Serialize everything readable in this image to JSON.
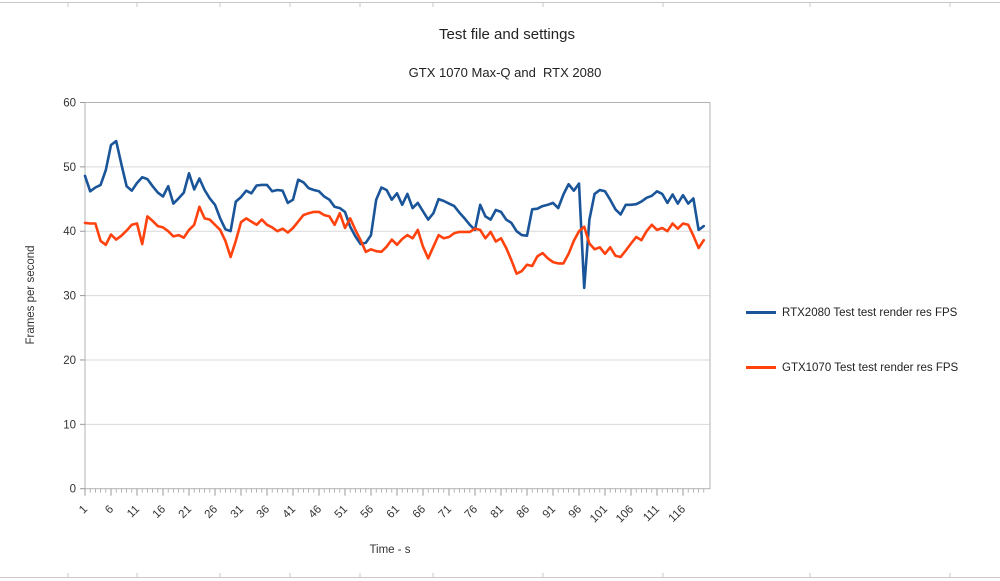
{
  "titles": {
    "main": "Test file and settings",
    "subtitle": "GTX 1070 Max-Q and  RTX 2080",
    "y_axis": "Frames per second",
    "x_axis": "Time - s"
  },
  "legend": {
    "position": "right",
    "items": [
      {
        "label": "RTX2080 Test test render res FPS",
        "color": "#1A5599"
      },
      {
        "label": "GTX1070 Test test render res FPS",
        "color": "#FF420E"
      }
    ]
  },
  "axes": {
    "y": {
      "min": 0,
      "max": 60,
      "tick_interval": 10,
      "tick_labels": [
        0,
        10,
        20,
        30,
        40,
        50,
        60
      ]
    },
    "x": {
      "start": 1,
      "step": 1,
      "count": 120,
      "minor_tick_every": 1,
      "label_every": 5,
      "tick_labels": [
        1,
        6,
        11,
        16,
        21,
        26,
        31,
        36,
        41,
        46,
        51,
        56,
        61,
        66,
        71,
        76,
        81,
        86,
        91,
        96,
        101,
        106,
        111,
        116
      ]
    }
  },
  "chart_data": {
    "type": "line",
    "title": "Test file and settings",
    "subtitle": "GTX 1070 Max-Q and  RTX 2080",
    "xlabel": "Time - s",
    "ylabel": "Frames per second",
    "ylim": [
      0,
      60
    ],
    "xlim": [
      1,
      120
    ],
    "grid": "horizontal",
    "legend_position": "right",
    "x_start": 1,
    "x_step": 1,
    "series": [
      {
        "name": "RTX2080 Test test render res FPS",
        "color": "#1A5599",
        "values": [
          48.6,
          46.2,
          46.8,
          47.2,
          49.5,
          53.4,
          54.0,
          50.4,
          47.0,
          46.3,
          47.5,
          48.4,
          48.1,
          47.0,
          46.0,
          45.4,
          47.0,
          44.3,
          45.1,
          46.0,
          49.0,
          46.5,
          48.2,
          46.4,
          45.1,
          44.1,
          42.0,
          40.3,
          40.0,
          44.6,
          45.3,
          46.3,
          45.9,
          47.1,
          47.2,
          47.2,
          46.2,
          46.4,
          46.3,
          44.4,
          44.9,
          48.0,
          47.6,
          46.7,
          46.4,
          46.2,
          45.4,
          44.9,
          43.8,
          43.6,
          43.0,
          40.7,
          39.2,
          38.0,
          38.2,
          39.4,
          44.9,
          46.8,
          46.4,
          44.9,
          45.9,
          44.1,
          45.8,
          43.6,
          44.4,
          43.1,
          41.8,
          42.8,
          45.0,
          44.7,
          44.3,
          43.9,
          42.9,
          42.0,
          41.0,
          40.2,
          44.1,
          42.3,
          41.8,
          43.3,
          43.0,
          41.8,
          41.3,
          40.0,
          39.4,
          39.3,
          43.4,
          43.5,
          43.9,
          44.1,
          44.4,
          43.6,
          45.7,
          47.3,
          46.3,
          47.4,
          31.2,
          41.8,
          45.8,
          46.4,
          46.2,
          44.9,
          43.4,
          42.6,
          44.1,
          44.1,
          44.2,
          44.6,
          45.2,
          45.5,
          46.2,
          45.8,
          44.4,
          45.7,
          44.3,
          45.6,
          44.3,
          45.1,
          40.2,
          40.8
        ]
      },
      {
        "name": "GTX1070 Test test render res FPS",
        "color": "#FF420E",
        "values": [
          41.3,
          41.2,
          41.2,
          38.5,
          37.9,
          39.5,
          38.7,
          39.3,
          40.1,
          41.0,
          41.2,
          38.0,
          42.3,
          41.6,
          40.8,
          40.6,
          40.0,
          39.2,
          39.4,
          39.0,
          40.2,
          41.0,
          43.8,
          42.0,
          41.8,
          41.0,
          40.2,
          38.5,
          36.0,
          38.5,
          41.4,
          42.0,
          41.5,
          41.0,
          41.8,
          41.0,
          40.6,
          40.0,
          40.4,
          39.8,
          40.5,
          41.5,
          42.5,
          42.8,
          43.0,
          43.0,
          42.5,
          42.3,
          41.0,
          42.8,
          40.5,
          42.0,
          40.2,
          38.6,
          36.8,
          37.2,
          36.9,
          36.8,
          37.6,
          38.7,
          37.9,
          38.8,
          39.4,
          38.9,
          40.2,
          37.6,
          35.8,
          37.6,
          39.4,
          38.9,
          39.1,
          39.7,
          39.9,
          39.9,
          39.9,
          40.4,
          40.2,
          38.9,
          39.9,
          38.4,
          38.9,
          37.4,
          35.5,
          33.4,
          33.8,
          34.8,
          34.6,
          36.1,
          36.6,
          35.8,
          35.2,
          35.0,
          35.0,
          36.5,
          38.5,
          40.0,
          40.7,
          38.1,
          37.2,
          37.5,
          36.5,
          37.5,
          36.2,
          36.0,
          37.0,
          38.1,
          39.1,
          38.6,
          40.0,
          41.0,
          40.2,
          40.5,
          40.0,
          41.2,
          40.4,
          41.2,
          41.0,
          39.3,
          37.4,
          38.6
        ]
      }
    ]
  },
  "colors": {
    "gridline": "#d9d9d9",
    "plot_border": "#b3b3b3",
    "axis": "#999999",
    "tick_text": "#333333",
    "sheet_grid": "#c8c8c8"
  }
}
